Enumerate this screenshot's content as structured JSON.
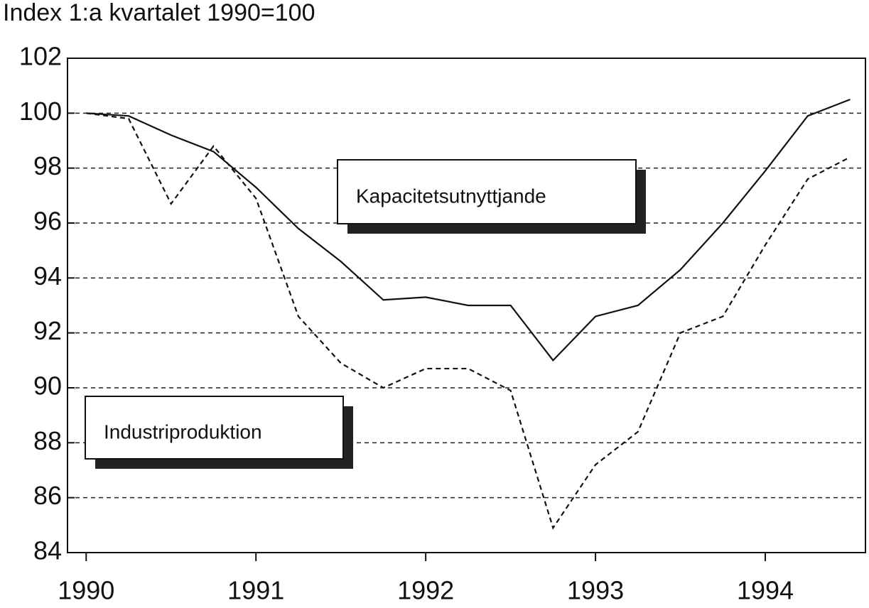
{
  "chart_data": {
    "type": "line",
    "title": "Index 1:a kvartalet 1990=100",
    "x": [
      1990,
      1990.25,
      1990.5,
      1990.75,
      1991,
      1991.25,
      1991.5,
      1991.75,
      1992,
      1992.25,
      1992.5,
      1992.75,
      1993,
      1993.25,
      1993.5,
      1993.75,
      1994,
      1994.25,
      1994.5
    ],
    "series": [
      {
        "name": "Kapacitetsutnyttjande",
        "color": "#111111",
        "line_style": "solid",
        "values": [
          100.0,
          99.9,
          99.2,
          98.6,
          97.3,
          95.8,
          94.6,
          93.2,
          93.3,
          93.0,
          93.0,
          91.0,
          92.6,
          93.0,
          94.3,
          96.0,
          97.9,
          99.9,
          100.5
        ]
      },
      {
        "name": "Industriproduktion",
        "color": "#111111",
        "line_style": "dashed",
        "values": [
          100.0,
          99.8,
          96.7,
          98.8,
          96.9,
          92.6,
          90.9,
          90.0,
          90.7,
          90.7,
          89.9,
          84.9,
          87.2,
          88.4,
          92.0,
          92.6,
          95.2,
          97.6,
          98.4
        ]
      }
    ],
    "xlim": [
      1989.89,
      1994.59
    ],
    "xticks": [
      1990,
      1991,
      1992,
      1993,
      1994
    ],
    "ylim": [
      84,
      102
    ],
    "yticks": [
      84,
      86,
      88,
      90,
      92,
      94,
      96,
      98,
      100,
      102
    ],
    "grid": true
  }
}
